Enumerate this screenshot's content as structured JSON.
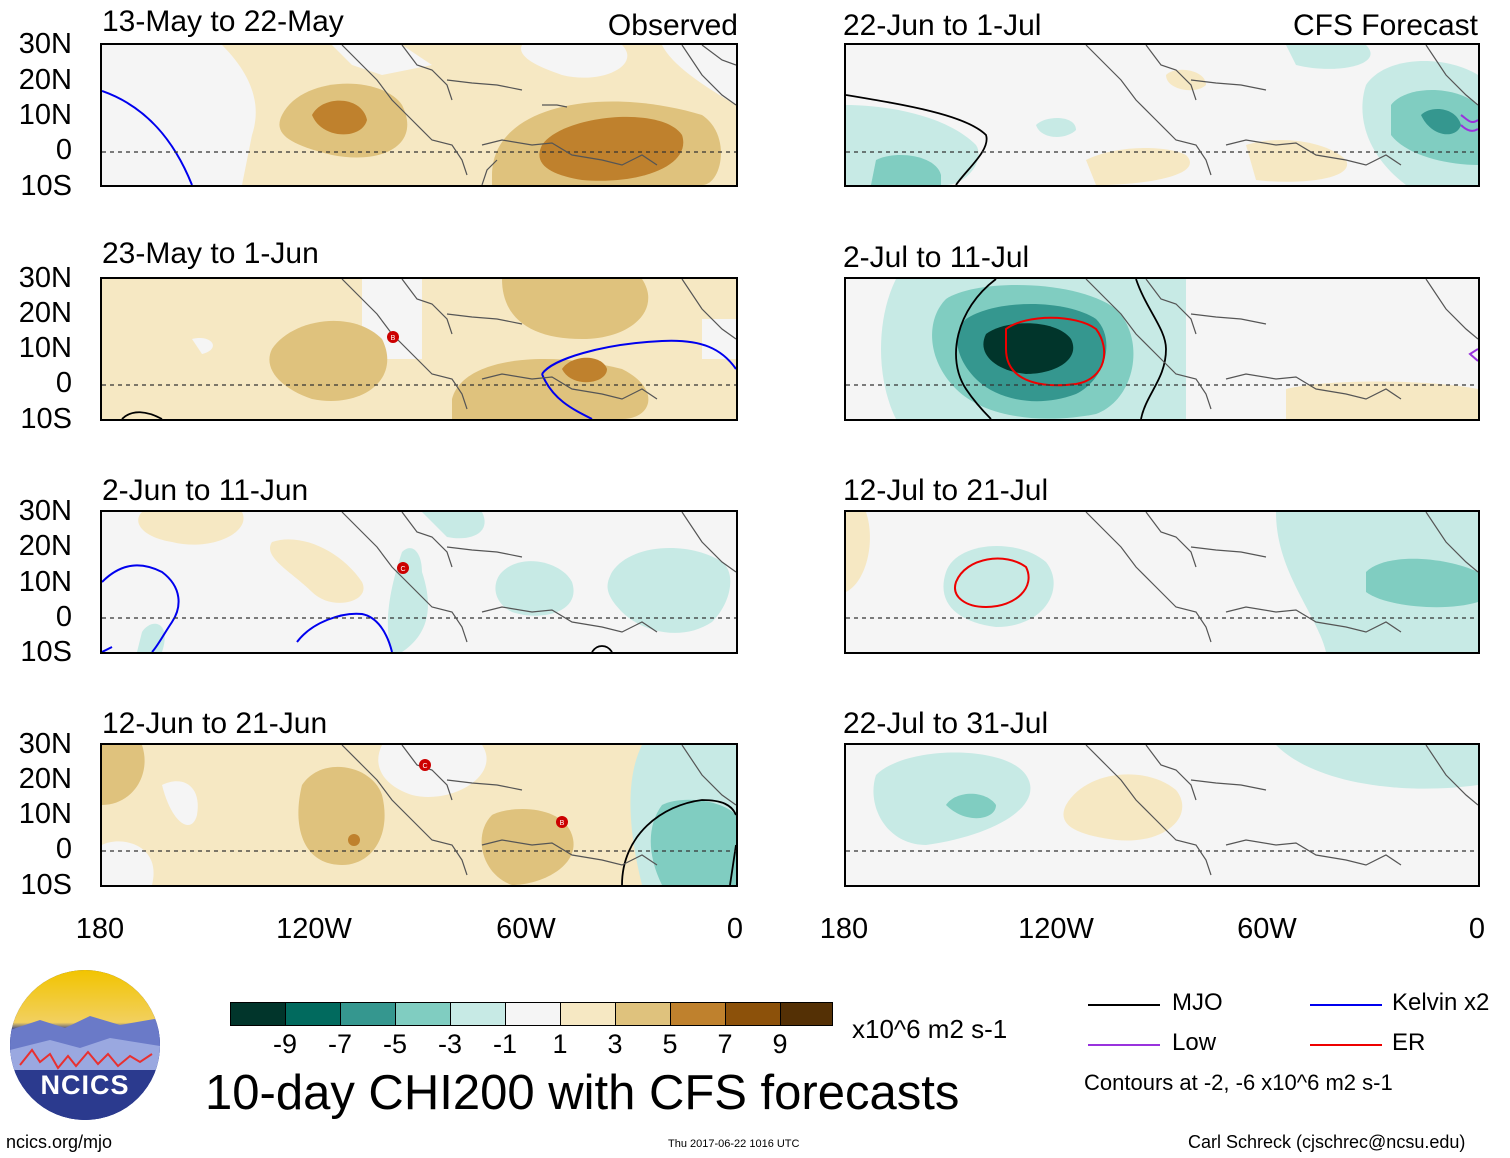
{
  "title": "10-day CHI200 with CFS forecasts",
  "left_column_tag": "Observed",
  "right_column_tag": "CFS Forecast",
  "lat_ticks": [
    "30N",
    "20N",
    "10N",
    "0",
    "10S"
  ],
  "lon_ticks": [
    "180",
    "120W",
    "60W",
    "0"
  ],
  "observed_panels": [
    {
      "title": "13-May to 22-May"
    },
    {
      "title": "23-May to 1-Jun"
    },
    {
      "title": "2-Jun to 11-Jun"
    },
    {
      "title": "12-Jun to 21-Jun"
    }
  ],
  "forecast_panels": [
    {
      "title": "22-Jun to 1-Jul"
    },
    {
      "title": "2-Jul to 11-Jul"
    },
    {
      "title": "12-Jul to 21-Jul"
    },
    {
      "title": "22-Jul to 31-Jul"
    }
  ],
  "colorbar": {
    "labels": [
      "-9",
      "-7",
      "-5",
      "-3",
      "-1",
      "1",
      "3",
      "5",
      "7",
      "9"
    ],
    "colors": [
      "#01352b",
      "#016a5e",
      "#35978f",
      "#80cdc1",
      "#c7eae5",
      "#f5f5f5",
      "#f6e8c3",
      "#dfc27d",
      "#bf812d",
      "#8c510a",
      "#543005"
    ],
    "units": "x10^6 m2 s-1"
  },
  "legend": {
    "items": [
      {
        "label": "MJO",
        "color": "#000000"
      },
      {
        "label": "Kelvin x2",
        "color": "#0000ee"
      },
      {
        "label": "Low",
        "color": "#9933dd"
      },
      {
        "label": "ER",
        "color": "#ee0000"
      }
    ],
    "contours_note": "Contours at -2, -6 x10^6 m2 s-1"
  },
  "logo_text": "NCICS",
  "footer": {
    "website": "ncics.org/mjo",
    "timestamp": "Thu 2017-06-22 1016 UTC",
    "author": "Carl Schreck (cjschrec@ncsu.edu)"
  },
  "storm_markers": [
    "B",
    "C",
    "C",
    "B"
  ]
}
